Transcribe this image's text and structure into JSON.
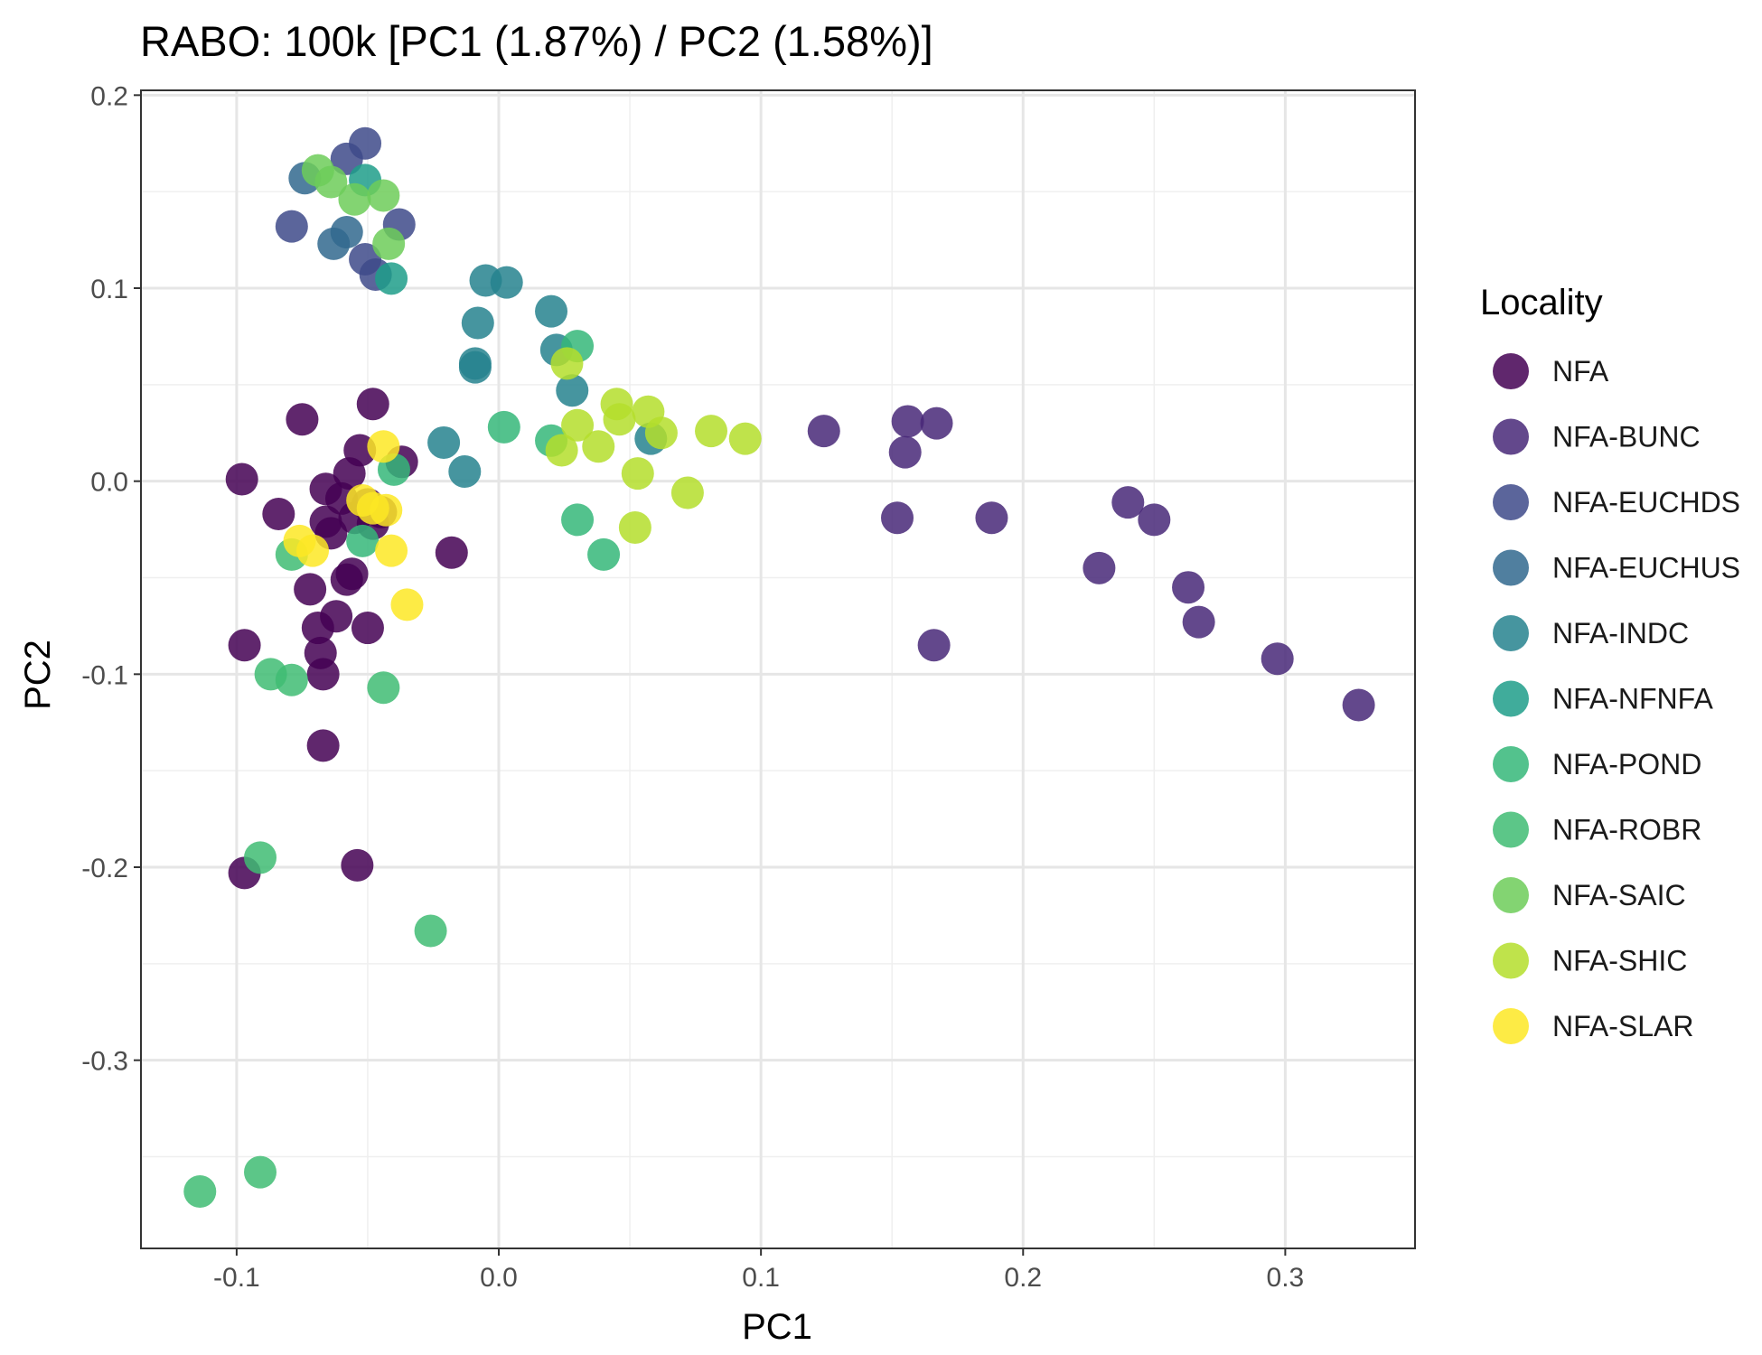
{
  "chart_data": {
    "type": "scatter",
    "title": "RABO: 100k [PC1 (1.87%) / PC2 (1.58%)]",
    "xlabel": "PC1",
    "ylabel": "PC2",
    "xlim": [
      -0.1365,
      0.3495
    ],
    "ylim": [
      -0.3975,
      0.2025
    ],
    "x_ticks": [
      -0.1,
      0.0,
      0.1,
      0.2,
      0.3
    ],
    "x_tick_labels": [
      "-0.1",
      "0.0",
      "0.1",
      "0.2",
      "0.3"
    ],
    "y_ticks": [
      -0.3,
      -0.2,
      -0.1,
      0.0,
      0.1,
      0.2
    ],
    "y_tick_labels": [
      "-0.3",
      "-0.2",
      "-0.1",
      "0.0",
      "0.1",
      "0.2"
    ],
    "grid": true,
    "legend": {
      "title": "Locality",
      "position": "right"
    },
    "series": [
      {
        "name": "NFA",
        "color": "#440154",
        "points": [
          [
            -0.075,
            0.032
          ],
          [
            -0.098,
            0.001
          ],
          [
            -0.084,
            -0.017
          ],
          [
            -0.048,
            0.04
          ],
          [
            -0.053,
            0.016
          ],
          [
            -0.057,
            0.004
          ],
          [
            -0.066,
            -0.004
          ],
          [
            -0.06,
            -0.009
          ],
          [
            -0.05,
            -0.012
          ],
          [
            -0.045,
            -0.016
          ],
          [
            -0.055,
            -0.019
          ],
          [
            -0.066,
            -0.021
          ],
          [
            -0.064,
            -0.027
          ],
          [
            -0.048,
            -0.022
          ],
          [
            -0.037,
            0.01
          ],
          [
            -0.018,
            -0.037
          ],
          [
            -0.072,
            -0.056
          ],
          [
            -0.058,
            -0.051
          ],
          [
            -0.056,
            -0.048
          ],
          [
            -0.069,
            -0.076
          ],
          [
            -0.062,
            -0.07
          ],
          [
            -0.05,
            -0.076
          ],
          [
            -0.068,
            -0.089
          ],
          [
            -0.067,
            -0.1
          ],
          [
            -0.097,
            -0.085
          ],
          [
            -0.067,
            -0.137
          ],
          [
            -0.054,
            -0.199
          ],
          [
            -0.097,
            -0.203
          ]
        ]
      },
      {
        "name": "NFA-BUNC",
        "color": "#482878",
        "points": [
          [
            0.124,
            0.026
          ],
          [
            0.156,
            0.031
          ],
          [
            0.167,
            0.03
          ],
          [
            0.155,
            0.015
          ],
          [
            0.152,
            -0.019
          ],
          [
            0.188,
            -0.019
          ],
          [
            0.24,
            -0.011
          ],
          [
            0.25,
            -0.02
          ],
          [
            0.229,
            -0.045
          ],
          [
            0.263,
            -0.055
          ],
          [
            0.267,
            -0.073
          ],
          [
            0.166,
            -0.085
          ],
          [
            0.297,
            -0.092
          ],
          [
            0.328,
            -0.116
          ]
        ]
      },
      {
        "name": "NFA-EUCHDS",
        "color": "#3E4A89",
        "points": [
          [
            -0.051,
            0.175
          ],
          [
            -0.058,
            0.167
          ],
          [
            -0.079,
            0.132
          ],
          [
            -0.038,
            0.133
          ],
          [
            -0.051,
            0.115
          ],
          [
            -0.047,
            0.107
          ]
        ]
      },
      {
        "name": "NFA-EUCHUS",
        "color": "#31688E",
        "points": [
          [
            -0.074,
            0.157
          ],
          [
            -0.063,
            0.123
          ],
          [
            -0.058,
            0.129
          ]
        ]
      },
      {
        "name": "NFA-INDC",
        "color": "#26828E",
        "points": [
          [
            -0.005,
            0.104
          ],
          [
            0.003,
            0.103
          ],
          [
            0.02,
            0.088
          ],
          [
            -0.008,
            0.082
          ],
          [
            0.022,
            0.068
          ],
          [
            -0.009,
            0.061
          ],
          [
            -0.009,
            0.059
          ],
          [
            0.028,
            0.047
          ],
          [
            -0.021,
            0.02
          ],
          [
            -0.013,
            0.005
          ],
          [
            0.058,
            0.022
          ]
        ]
      },
      {
        "name": "NFA-NFNFA",
        "color": "#1F9E89",
        "points": [
          [
            -0.051,
            0.156
          ],
          [
            -0.041,
            0.105
          ]
        ]
      },
      {
        "name": "NFA-POND",
        "color": "#35B779",
        "points": [
          [
            0.03,
            0.07
          ],
          [
            0.002,
            0.028
          ],
          [
            0.02,
            0.021
          ],
          [
            0.03,
            -0.02
          ],
          [
            0.04,
            -0.038
          ],
          [
            -0.04,
            0.006
          ],
          [
            -0.052,
            -0.031
          ]
        ]
      },
      {
        "name": "NFA-ROBR",
        "color": "#3FBC73",
        "points": [
          [
            -0.079,
            -0.038
          ],
          [
            -0.087,
            -0.1
          ],
          [
            -0.079,
            -0.103
          ],
          [
            -0.044,
            -0.107
          ],
          [
            -0.091,
            -0.195
          ],
          [
            -0.026,
            -0.233
          ],
          [
            -0.091,
            -0.358
          ],
          [
            -0.114,
            -0.368
          ]
        ]
      },
      {
        "name": "NFA-SAIC",
        "color": "#6DCD59",
        "points": [
          [
            -0.069,
            0.161
          ],
          [
            -0.064,
            0.155
          ],
          [
            -0.044,
            0.148
          ],
          [
            -0.055,
            0.146
          ],
          [
            -0.042,
            0.123
          ]
        ]
      },
      {
        "name": "NFA-SHIC",
        "color": "#B4DE2C",
        "points": [
          [
            0.026,
            0.061
          ],
          [
            0.045,
            0.04
          ],
          [
            0.057,
            0.036
          ],
          [
            0.046,
            0.032
          ],
          [
            0.081,
            0.026
          ],
          [
            0.094,
            0.022
          ],
          [
            0.03,
            0.029
          ],
          [
            0.062,
            0.025
          ],
          [
            0.024,
            0.016
          ],
          [
            0.038,
            0.018
          ],
          [
            0.053,
            0.004
          ],
          [
            0.072,
            -0.006
          ],
          [
            0.052,
            -0.024
          ]
        ]
      },
      {
        "name": "NFA-SLAR",
        "color": "#FDE725",
        "points": [
          [
            -0.044,
            0.018
          ],
          [
            -0.048,
            -0.014
          ],
          [
            -0.043,
            -0.015
          ],
          [
            -0.052,
            -0.01
          ],
          [
            -0.076,
            -0.031
          ],
          [
            -0.071,
            -0.036
          ],
          [
            -0.041,
            -0.036
          ],
          [
            -0.035,
            -0.064
          ]
        ]
      }
    ]
  }
}
